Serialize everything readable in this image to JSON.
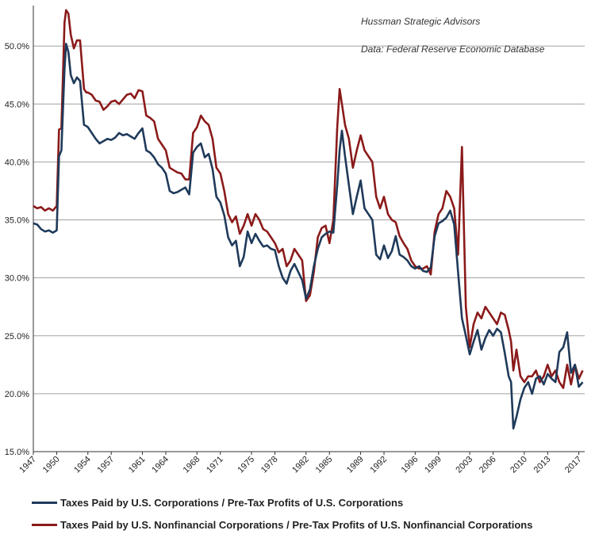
{
  "chart_data": {
    "type": "line",
    "title": "",
    "source_lines": [
      "Hussman Strategic Advisors",
      "Data: Federal Reserve Economic Database"
    ],
    "xlabel": "",
    "ylabel": "",
    "xlim": [
      1947,
      2017.75
    ],
    "ylim": [
      15,
      53.5
    ],
    "grid": true,
    "legend_position": "bottom",
    "y_ticks": [
      15,
      20,
      25,
      30,
      35,
      40,
      45,
      50
    ],
    "y_tick_labels": [
      "15.0%",
      "20.0%",
      "25.0%",
      "30.0%",
      "35.0%",
      "40.0%",
      "45.0%",
      "50.0%"
    ],
    "x_ticks": [
      1947,
      1950,
      1954,
      1957,
      1961,
      1964,
      1968,
      1971,
      1975,
      1978,
      1982,
      1985,
      1989,
      1992,
      1996,
      1999,
      2003,
      2006,
      2010,
      2013,
      2017
    ],
    "x_tick_labels": [
      "1947",
      "1950",
      "1954",
      "1957",
      "1961",
      "1964",
      "1968",
      "1971",
      "1975",
      "1978",
      "1982",
      "1985",
      "1989",
      "1992",
      "1996",
      "1999",
      "2003",
      "2006",
      "2010",
      "2013",
      "2017"
    ],
    "series": [
      {
        "name": "Taxes Paid by U.S. Corporations / Pre-Tax Profits of U.S. Corporations",
        "color": "#1f3a5a",
        "x": [
          1947.0,
          1947.5,
          1948.0,
          1948.5,
          1949.0,
          1949.5,
          1950.0,
          1950.3,
          1950.6,
          1951.0,
          1951.2,
          1951.5,
          1951.8,
          1952.2,
          1952.6,
          1953.0,
          1953.5,
          1953.8,
          1954.0,
          1954.5,
          1955.0,
          1955.5,
          1956.0,
          1956.5,
          1957.0,
          1957.5,
          1958.0,
          1958.5,
          1959.0,
          1959.5,
          1960.0,
          1960.5,
          1961.0,
          1961.5,
          1962.0,
          1962.5,
          1963.0,
          1963.5,
          1964.0,
          1964.5,
          1965.0,
          1965.5,
          1966.0,
          1966.5,
          1967.0,
          1967.5,
          1968.0,
          1968.5,
          1969.0,
          1969.5,
          1970.0,
          1970.5,
          1971.0,
          1971.5,
          1972.0,
          1972.5,
          1973.0,
          1973.5,
          1974.0,
          1974.5,
          1975.0,
          1975.5,
          1976.0,
          1976.5,
          1977.0,
          1977.5,
          1978.0,
          1978.5,
          1979.0,
          1979.5,
          1980.0,
          1980.5,
          1981.0,
          1981.5,
          1982.0,
          1982.5,
          1983.0,
          1983.5,
          1984.0,
          1984.5,
          1985.0,
          1985.5,
          1986.0,
          1986.3,
          1986.6,
          1987.0,
          1987.5,
          1988.0,
          1988.5,
          1989.0,
          1989.5,
          1990.0,
          1990.5,
          1991.0,
          1991.5,
          1992.0,
          1992.5,
          1993.0,
          1993.5,
          1994.0,
          1994.5,
          1995.0,
          1995.5,
          1996.0,
          1996.5,
          1997.0,
          1997.5,
          1998.0,
          1998.5,
          1999.0,
          1999.5,
          2000.0,
          2000.5,
          2001.0,
          2001.5,
          2002.0,
          2002.5,
          2003.0,
          2003.5,
          2004.0,
          2004.5,
          2005.0,
          2005.5,
          2006.0,
          2006.5,
          2007.0,
          2007.5,
          2008.0,
          2008.3,
          2008.6,
          2009.0,
          2009.5,
          2010.0,
          2010.5,
          2011.0,
          2011.5,
          2012.0,
          2012.5,
          2013.0,
          2013.5,
          2014.0,
          2014.5,
          2015.0,
          2015.5,
          2016.0,
          2016.5,
          2017.0,
          2017.5
        ],
        "values": [
          34.7,
          34.6,
          34.2,
          34.0,
          34.1,
          33.9,
          34.1,
          40.5,
          41.0,
          48.0,
          50.2,
          49.5,
          47.5,
          46.8,
          47.3,
          47.0,
          43.2,
          43.1,
          43.0,
          42.5,
          42.0,
          41.6,
          41.8,
          42.0,
          41.9,
          42.1,
          42.5,
          42.3,
          42.4,
          42.2,
          42.0,
          42.5,
          42.9,
          41.0,
          40.8,
          40.4,
          39.8,
          39.5,
          39.0,
          37.5,
          37.3,
          37.4,
          37.6,
          37.8,
          37.2,
          40.8,
          41.3,
          41.6,
          40.4,
          40.7,
          39.4,
          37.0,
          36.5,
          35.4,
          33.5,
          32.8,
          33.2,
          31.0,
          31.8,
          34.0,
          33.0,
          33.8,
          33.2,
          32.7,
          32.8,
          32.5,
          32.4,
          31.0,
          30.0,
          29.5,
          30.6,
          31.2,
          30.5,
          29.8,
          28.2,
          29.0,
          31.0,
          32.5,
          33.5,
          33.8,
          34.0,
          33.9,
          38.0,
          41.0,
          42.7,
          40.5,
          38.0,
          35.5,
          37.0,
          38.4,
          36.0,
          35.5,
          35.0,
          32.0,
          31.6,
          32.8,
          31.7,
          32.3,
          33.6,
          32.0,
          31.8,
          31.5,
          31.0,
          30.8,
          31.0,
          30.6,
          30.5,
          30.9,
          33.6,
          34.7,
          34.9,
          35.2,
          35.8,
          34.6,
          30.5,
          26.5,
          25.0,
          23.4,
          24.5,
          25.5,
          23.8,
          24.8,
          25.5,
          25.0,
          25.6,
          25.3,
          23.5,
          21.5,
          21.0,
          17.0,
          18.0,
          19.5,
          20.5,
          21.0,
          20.0,
          21.3,
          21.5,
          20.8,
          21.7,
          21.3,
          21.0,
          23.6,
          24.0,
          25.3,
          21.8,
          22.5,
          20.6,
          21.0
        ]
      },
      {
        "name": "Taxes Paid by U.S. Nonfinancial Corporations / Pre-Tax Profits of U.S. Nonfinancial Corporations",
        "color": "#8b1a1a",
        "x": [
          1947.0,
          1947.5,
          1948.0,
          1948.5,
          1949.0,
          1949.5,
          1950.0,
          1950.3,
          1950.6,
          1951.0,
          1951.2,
          1951.5,
          1951.8,
          1952.2,
          1952.6,
          1953.0,
          1953.5,
          1953.8,
          1954.0,
          1954.5,
          1955.0,
          1955.5,
          1956.0,
          1956.5,
          1957.0,
          1957.5,
          1958.0,
          1958.5,
          1959.0,
          1959.5,
          1960.0,
          1960.5,
          1961.0,
          1961.5,
          1962.0,
          1962.5,
          1963.0,
          1963.5,
          1964.0,
          1964.5,
          1965.0,
          1965.5,
          1966.0,
          1966.5,
          1967.0,
          1967.5,
          1968.0,
          1968.5,
          1969.0,
          1969.5,
          1970.0,
          1970.5,
          1971.0,
          1971.5,
          1972.0,
          1972.5,
          1973.0,
          1973.5,
          1974.0,
          1974.5,
          1975.0,
          1975.5,
          1976.0,
          1976.5,
          1977.0,
          1977.5,
          1978.0,
          1978.5,
          1979.0,
          1979.5,
          1980.0,
          1980.5,
          1981.0,
          1981.5,
          1982.0,
          1982.5,
          1983.0,
          1983.5,
          1984.0,
          1984.5,
          1985.0,
          1985.5,
          1986.0,
          1986.3,
          1986.6,
          1987.0,
          1987.5,
          1988.0,
          1988.5,
          1989.0,
          1989.5,
          1990.0,
          1990.5,
          1991.0,
          1991.5,
          1992.0,
          1992.5,
          1993.0,
          1993.5,
          1994.0,
          1994.5,
          1995.0,
          1995.5,
          1996.0,
          1996.5,
          1997.0,
          1997.5,
          1998.0,
          1998.5,
          1999.0,
          1999.5,
          2000.0,
          2000.5,
          2001.0,
          2001.5,
          2002.0,
          2002.5,
          2003.0,
          2003.5,
          2004.0,
          2004.5,
          2005.0,
          2005.5,
          2006.0,
          2006.5,
          2007.0,
          2007.5,
          2008.0,
          2008.3,
          2008.6,
          2009.0,
          2009.5,
          2010.0,
          2010.5,
          2011.0,
          2011.5,
          2012.0,
          2012.5,
          2013.0,
          2013.5,
          2014.0,
          2014.5,
          2015.0,
          2015.5,
          2016.0,
          2016.5,
          2017.0,
          2017.5
        ],
        "values": [
          36.2,
          36.0,
          36.1,
          35.8,
          36.0,
          35.8,
          36.2,
          42.8,
          42.9,
          52.0,
          53.1,
          52.8,
          51.0,
          49.8,
          50.5,
          50.5,
          46.3,
          46.0,
          46.0,
          45.8,
          45.3,
          45.2,
          44.5,
          44.8,
          45.2,
          45.3,
          45.0,
          45.4,
          45.8,
          45.9,
          45.5,
          46.2,
          46.1,
          44.0,
          43.8,
          43.5,
          42.0,
          41.5,
          41.0,
          39.5,
          39.3,
          39.1,
          39.0,
          38.5,
          38.5,
          42.5,
          43.0,
          44.0,
          43.5,
          43.2,
          42.0,
          39.5,
          39.0,
          37.5,
          35.5,
          34.8,
          35.3,
          33.8,
          34.5,
          35.5,
          34.5,
          35.5,
          35.0,
          34.2,
          34.0,
          33.5,
          33.0,
          32.2,
          32.5,
          31.0,
          31.5,
          32.5,
          32.0,
          31.5,
          28.0,
          28.5,
          30.5,
          33.5,
          34.3,
          34.5,
          33.0,
          35.0,
          43.0,
          46.3,
          45.0,
          43.2,
          42.0,
          39.5,
          41.0,
          42.3,
          41.0,
          40.5,
          40.0,
          37.0,
          36.0,
          37.0,
          35.5,
          35.0,
          34.8,
          33.6,
          33.0,
          32.5,
          31.5,
          31.0,
          30.8,
          30.8,
          31.0,
          30.3,
          34.0,
          35.5,
          36.0,
          37.5,
          37.0,
          36.0,
          32.0,
          41.3,
          27.5,
          24.0,
          26.0,
          27.0,
          26.5,
          27.5,
          27.0,
          26.5,
          26.0,
          27.0,
          26.8,
          25.5,
          24.5,
          22.0,
          23.8,
          21.5,
          21.0,
          21.5,
          21.5,
          22.0,
          21.0,
          21.5,
          22.5,
          21.5,
          22.0,
          21.0,
          20.5,
          22.5,
          20.8,
          22.5,
          21.3,
          22.0
        ]
      }
    ]
  }
}
